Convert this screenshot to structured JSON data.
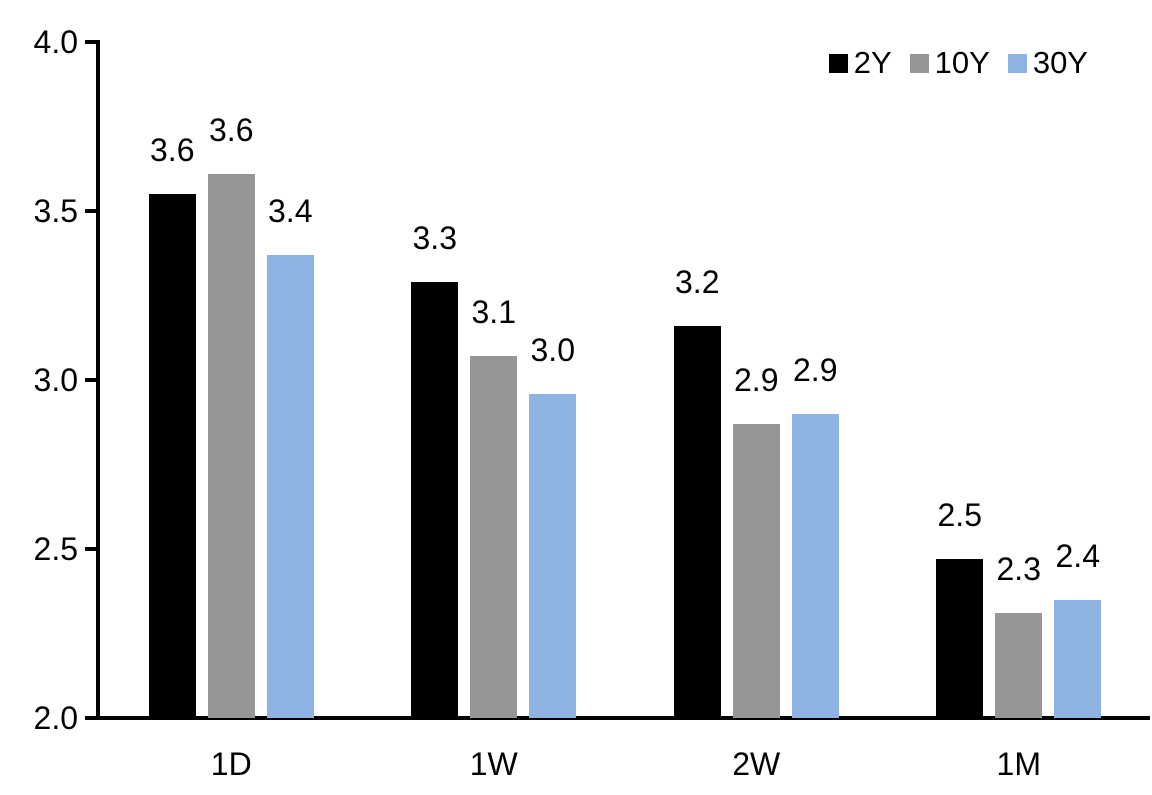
{
  "chart_data": {
    "type": "bar",
    "title": "",
    "categories": [
      "1D",
      "1W",
      "2W",
      "1M"
    ],
    "series": [
      {
        "name": "2Y",
        "color": "#000000",
        "values": [
          3.55,
          3.29,
          3.16,
          2.47
        ],
        "labels": [
          "3.6",
          "3.3",
          "3.2",
          "2.5"
        ]
      },
      {
        "name": "10Y",
        "color": "#969696",
        "values": [
          3.61,
          3.07,
          2.87,
          2.31
        ],
        "labels": [
          "3.6",
          "3.1",
          "2.9",
          "2.3"
        ]
      },
      {
        "name": "30Y",
        "color": "#8DB4E2",
        "values": [
          3.37,
          2.96,
          2.9,
          2.35
        ],
        "labels": [
          "3.4",
          "3.0",
          "2.9",
          "2.4"
        ]
      }
    ],
    "ylim": [
      2.0,
      4.0
    ],
    "yticks": [
      4.0,
      3.5,
      3.0,
      2.5,
      2.0
    ],
    "ytick_labels": [
      "4.0",
      "3.5",
      "3.0",
      "2.5",
      "2.0"
    ],
    "xlabel": "",
    "ylabel": "",
    "grid": false,
    "legend_position": "top-right"
  }
}
